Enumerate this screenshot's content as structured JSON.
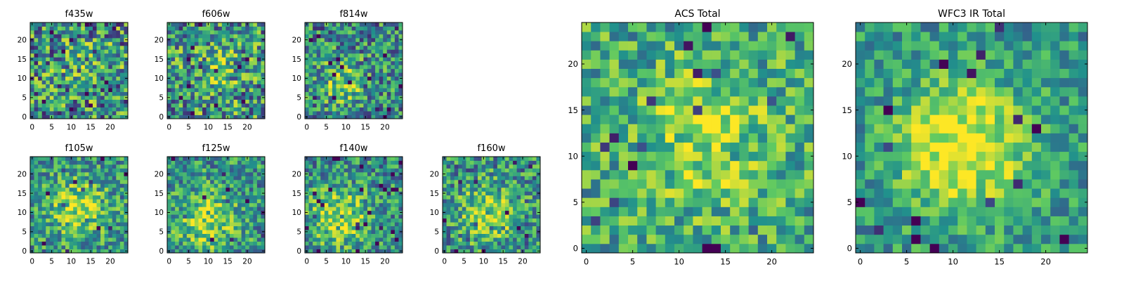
{
  "figure": {
    "background": "#ffffff",
    "colormap": "viridis",
    "cmap_stops": [
      "#440154",
      "#3b528b",
      "#21918c",
      "#5ec962",
      "#fde725"
    ]
  },
  "chart_data": [
    {
      "type": "heatmap",
      "title": "f435w",
      "grid_size": 25,
      "xlim": [
        0,
        24
      ],
      "ylim": [
        0,
        24
      ],
      "xticks": [
        "0",
        "5",
        "10",
        "15",
        "20"
      ],
      "yticks": [
        "0",
        "5",
        "10",
        "15",
        "20"
      ],
      "seed": 11,
      "center": [
        14,
        13
      ],
      "blob_sigma": 5,
      "blob_amp": 0.1,
      "noise_amp": 0.85,
      "base": 0.3
    },
    {
      "type": "heatmap",
      "title": "f606w",
      "grid_size": 25,
      "xlim": [
        0,
        24
      ],
      "ylim": [
        0,
        24
      ],
      "xticks": [
        "0",
        "5",
        "10",
        "15",
        "20"
      ],
      "yticks": [
        "0",
        "5",
        "10",
        "15",
        "20"
      ],
      "seed": 23,
      "center": [
        12,
        12
      ],
      "blob_sigma": 5,
      "blob_amp": 0.15,
      "noise_amp": 0.8,
      "base": 0.32
    },
    {
      "type": "heatmap",
      "title": "f814w",
      "grid_size": 25,
      "xlim": [
        0,
        24
      ],
      "ylim": [
        0,
        24
      ],
      "xticks": [
        "0",
        "5",
        "10",
        "15",
        "20"
      ],
      "yticks": [
        "0",
        "5",
        "10",
        "15",
        "20"
      ],
      "seed": 37,
      "center": [
        9,
        9
      ],
      "blob_sigma": 4,
      "blob_amp": 0.3,
      "noise_amp": 0.7,
      "base": 0.28
    },
    {
      "type": "heatmap",
      "title": "f105w",
      "grid_size": 25,
      "xlim": [
        0,
        24
      ],
      "ylim": [
        0,
        24
      ],
      "xticks": [
        "0",
        "5",
        "10",
        "15",
        "20"
      ],
      "yticks": [
        "0",
        "5",
        "10",
        "15",
        "20"
      ],
      "seed": 41,
      "center": [
        12,
        11
      ],
      "blob_sigma": 5,
      "blob_amp": 0.35,
      "noise_amp": 0.6,
      "base": 0.32
    },
    {
      "type": "heatmap",
      "title": "f125w",
      "grid_size": 25,
      "xlim": [
        0,
        24
      ],
      "ylim": [
        0,
        24
      ],
      "xticks": [
        "0",
        "5",
        "10",
        "15",
        "20"
      ],
      "yticks": [
        "0",
        "5",
        "10",
        "15",
        "20"
      ],
      "seed": 53,
      "center": [
        10,
        8
      ],
      "blob_sigma": 5,
      "blob_amp": 0.35,
      "noise_amp": 0.6,
      "base": 0.32
    },
    {
      "type": "heatmap",
      "title": "f140w",
      "grid_size": 25,
      "xlim": [
        0,
        24
      ],
      "ylim": [
        0,
        24
      ],
      "xticks": [
        "0",
        "5",
        "10",
        "15",
        "20"
      ],
      "yticks": [
        "0",
        "5",
        "10",
        "15",
        "20"
      ],
      "seed": 67,
      "center": [
        8,
        9
      ],
      "blob_sigma": 5,
      "blob_amp": 0.4,
      "noise_amp": 0.6,
      "base": 0.3
    },
    {
      "type": "heatmap",
      "title": "f160w",
      "grid_size": 25,
      "xlim": [
        0,
        24
      ],
      "ylim": [
        0,
        24
      ],
      "xticks": [
        "0",
        "5",
        "10",
        "15",
        "20"
      ],
      "yticks": [
        "0",
        "5",
        "10",
        "15",
        "20"
      ],
      "seed": 79,
      "center": [
        11,
        10
      ],
      "blob_sigma": 5,
      "blob_amp": 0.35,
      "noise_amp": 0.65,
      "base": 0.3
    },
    {
      "type": "heatmap",
      "title": "ACS Total",
      "grid_size": 25,
      "xlim": [
        0,
        24
      ],
      "ylim": [
        0,
        24
      ],
      "xticks": [
        "0",
        "5",
        "10",
        "15",
        "20"
      ],
      "yticks": [
        "0",
        "5",
        "10",
        "15",
        "20"
      ],
      "seed": 97,
      "center": [
        13,
        12
      ],
      "blob_sigma": 5,
      "blob_amp": 0.25,
      "noise_amp": 0.55,
      "base": 0.4
    },
    {
      "type": "heatmap",
      "title": "WFC3 IR Total",
      "grid_size": 25,
      "xlim": [
        0,
        24
      ],
      "ylim": [
        0,
        24
      ],
      "xticks": [
        "0",
        "5",
        "10",
        "15",
        "20"
      ],
      "yticks": [
        "0",
        "5",
        "10",
        "15",
        "20"
      ],
      "seed": 113,
      "center": [
        11,
        11
      ],
      "blob_sigma": 5,
      "blob_amp": 0.5,
      "noise_amp": 0.45,
      "base": 0.32
    }
  ]
}
